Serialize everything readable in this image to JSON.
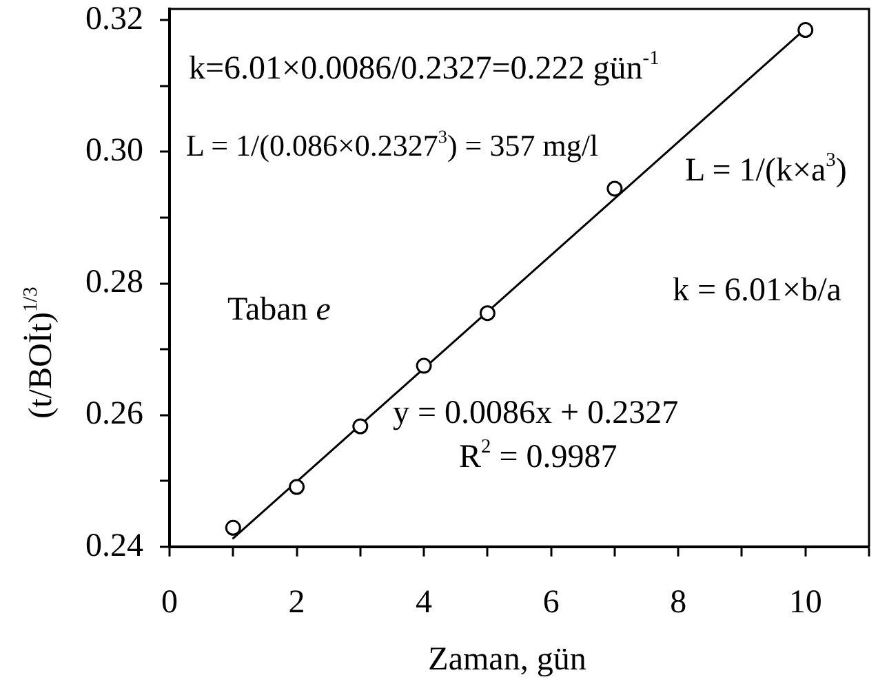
{
  "chart_data": {
    "type": "scatter",
    "xlabel": "Zaman, gün",
    "ylabel": "(t/BOİt)$^{1/3}$",
    "xlim": [
      0,
      11
    ],
    "xticks": [
      0,
      {
        "value": 1,
        "label": null
      },
      2,
      {
        "value": 3,
        "label": null
      },
      4,
      {
        "value": 5,
        "label": null
      },
      6,
      {
        "value": 7,
        "label": null
      },
      8,
      {
        "value": 9,
        "label": null
      },
      10,
      {
        "value": 11,
        "label": null
      }
    ],
    "ylim": [
      0.24,
      0.3217
    ],
    "yticks": [
      0.24,
      {
        "value": 0.25,
        "label": null
      },
      0.26,
      {
        "value": 0.27,
        "label": null
      },
      0.28,
      {
        "value": 0.29,
        "label": null
      },
      {
        "value": 0.3,
        "label": "0.30"
      },
      {
        "value": 0.31,
        "label": null
      },
      0.32
    ],
    "series": [
      {
        "color": "#000000",
        "marker": "circle",
        "x": [
          1,
          2,
          3,
          4,
          5,
          7,
          10
        ],
        "values": [
          0.2429,
          0.2491,
          0.2583,
          0.2675,
          0.2755,
          0.2944,
          0.3185
        ]
      },
      {
        "type": "line",
        "color": "#000000",
        "marker": "none",
        "line_style": "solid",
        "x": [
          1,
          10
        ],
        "values": [
          0.2413,
          0.3187
        ]
      }
    ],
    "annotations": [
      "k=6.01×0.0086/0.2327=0.222 gün$^{-1}$",
      "L = 1/(0.086×0.2327$^{3}$) = 357 mg/l",
      "L = 1/(k×a$^{3}$)",
      "k = 6.01×b/a",
      "Taban e",
      "y = 0.0086x + 0.2327",
      "R$^{2}$ = 0.9987"
    ]
  }
}
